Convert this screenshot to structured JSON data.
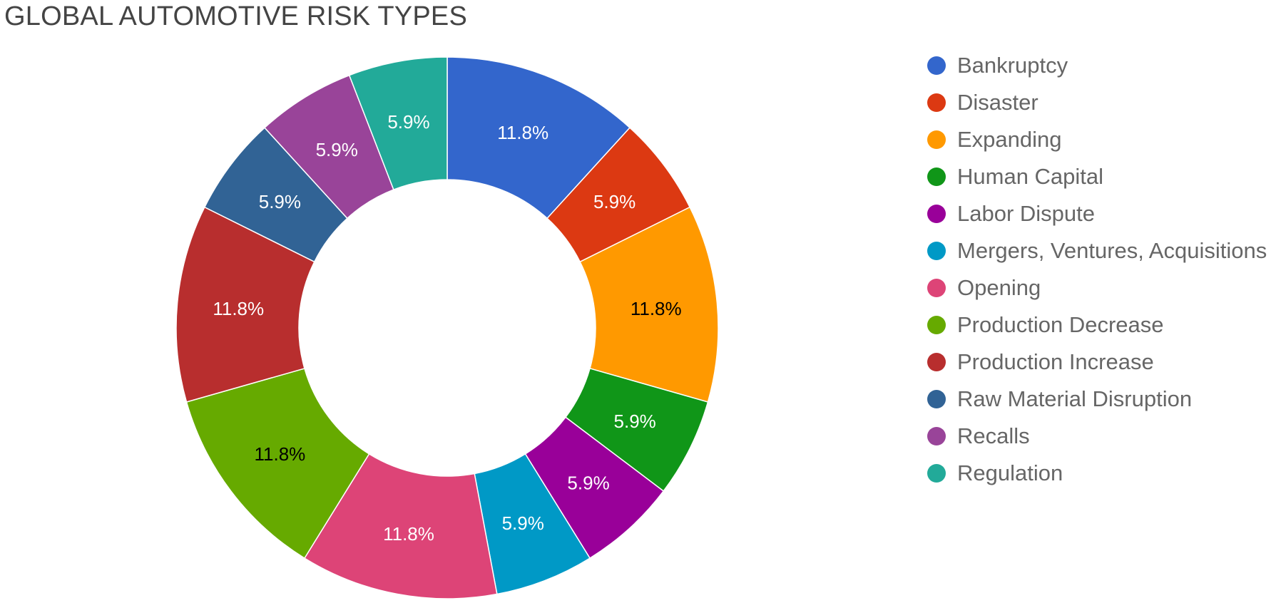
{
  "chart_data": {
    "type": "pie",
    "title": "GLOBAL AUTOMOTIVE RISK TYPES",
    "donut": true,
    "legend": "right",
    "categories": [
      "Bankruptcy",
      "Disaster",
      "Expanding",
      "Human Capital",
      "Labor Dispute",
      "Mergers, Ventures, Acquisitions",
      "Opening",
      "Production Decrease",
      "Production Increase",
      "Raw Material Disruption",
      "Recalls",
      "Regulation"
    ],
    "values": [
      11.8,
      5.9,
      11.8,
      5.9,
      5.9,
      5.9,
      11.8,
      11.8,
      11.8,
      5.9,
      5.9,
      5.9
    ],
    "labels": [
      "11.8%",
      "5.9%",
      "11.8%",
      "5.9%",
      "5.9%",
      "5.9%",
      "11.8%",
      "11.8%",
      "11.8%",
      "5.9%",
      "5.9%",
      "5.9%"
    ],
    "colors": [
      "#3366cc",
      "#dc3912",
      "#ff9900",
      "#109618",
      "#990099",
      "#0099c6",
      "#dd4477",
      "#66aa00",
      "#b82e2e",
      "#316395",
      "#994499",
      "#22aa99"
    ],
    "label_colors": [
      "#ffffff",
      "#ffffff",
      "#000000",
      "#ffffff",
      "#ffffff",
      "#ffffff",
      "#ffffff",
      "#000000",
      "#ffffff",
      "#ffffff",
      "#ffffff",
      "#ffffff"
    ]
  }
}
